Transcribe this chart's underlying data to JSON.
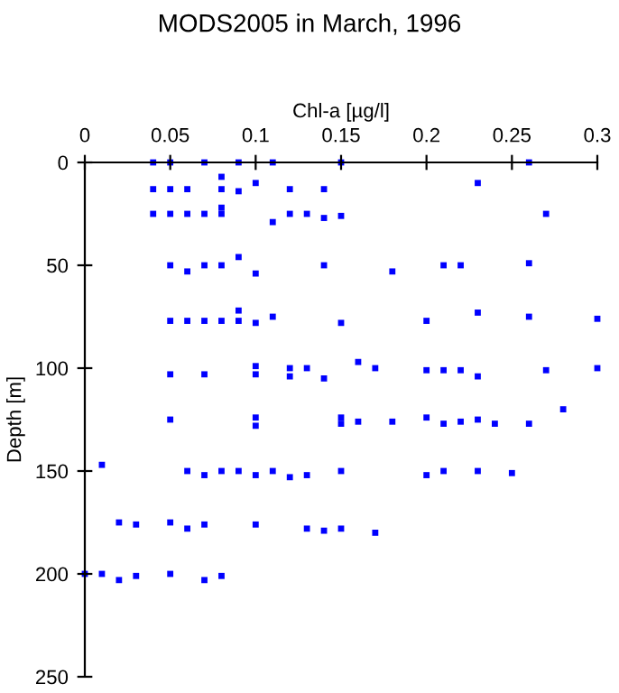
{
  "chart_data": {
    "type": "scatter",
    "title": "MODS2005 in March, 1996",
    "xlabel": "Chl-a [µg/l]",
    "ylabel": "Depth [m]",
    "x": [
      0.04,
      0.05,
      0.07,
      0.09,
      0.11,
      0.15,
      0.26,
      0.08,
      0.23,
      0.1,
      0.04,
      0.05,
      0.06,
      0.08,
      0.09,
      0.12,
      0.14,
      0.04,
      0.05,
      0.06,
      0.07,
      0.08,
      0.08,
      0.11,
      0.12,
      0.13,
      0.14,
      0.15,
      0.27,
      0.05,
      0.06,
      0.07,
      0.08,
      0.09,
      0.1,
      0.14,
      0.18,
      0.21,
      0.22,
      0.26,
      0.05,
      0.06,
      0.07,
      0.08,
      0.09,
      0.09,
      0.1,
      0.11,
      0.15,
      0.2,
      0.23,
      0.26,
      0.3,
      0.05,
      0.07,
      0.1,
      0.1,
      0.12,
      0.12,
      0.13,
      0.14,
      0.16,
      0.17,
      0.2,
      0.21,
      0.22,
      0.23,
      0.27,
      0.3,
      0.05,
      0.1,
      0.1,
      0.15,
      0.15,
      0.16,
      0.18,
      0.2,
      0.21,
      0.22,
      0.23,
      0.24,
      0.26,
      0.28,
      0.01,
      0.06,
      0.07,
      0.08,
      0.09,
      0.1,
      0.11,
      0.12,
      0.13,
      0.15,
      0.2,
      0.21,
      0.23,
      0.25,
      0.02,
      0.03,
      0.05,
      0.06,
      0.07,
      0.1,
      0.13,
      0.14,
      0.15,
      0.17,
      0.0,
      0.01,
      0.02,
      0.03,
      0.05,
      0.07,
      0.08
    ],
    "values": [
      0,
      0,
      0,
      0,
      0,
      0,
      0,
      7,
      10,
      10,
      13,
      13,
      13,
      13,
      14,
      13,
      13,
      25,
      25,
      25,
      25,
      22,
      25,
      29,
      25,
      25,
      27,
      26,
      25,
      50,
      53,
      50,
      50,
      46,
      54,
      50,
      53,
      50,
      50,
      49,
      77,
      77,
      77,
      77,
      72,
      77,
      78,
      75,
      78,
      77,
      73,
      75,
      76,
      103,
      103,
      99,
      103,
      100,
      104,
      100,
      105,
      97,
      100,
      101,
      101,
      101,
      104,
      101,
      100,
      125,
      124,
      128,
      124,
      127,
      126,
      126,
      124,
      127,
      126,
      125,
      127,
      127,
      120,
      147,
      150,
      152,
      150,
      150,
      152,
      150,
      153,
      152,
      150,
      152,
      150,
      150,
      151,
      175,
      176,
      175,
      178,
      176,
      176,
      178,
      179,
      178,
      180,
      200,
      200,
      203,
      201,
      200,
      203,
      201
    ],
    "color": "#0000ff",
    "marker": "square",
    "xlim": [
      0,
      0.3
    ],
    "xticks": [
      0,
      0.05,
      0.1,
      0.15,
      0.2,
      0.25,
      0.3
    ],
    "ylim": [
      250,
      0
    ],
    "yticks": [
      0,
      50,
      100,
      150,
      200,
      250
    ],
    "grid": false
  }
}
